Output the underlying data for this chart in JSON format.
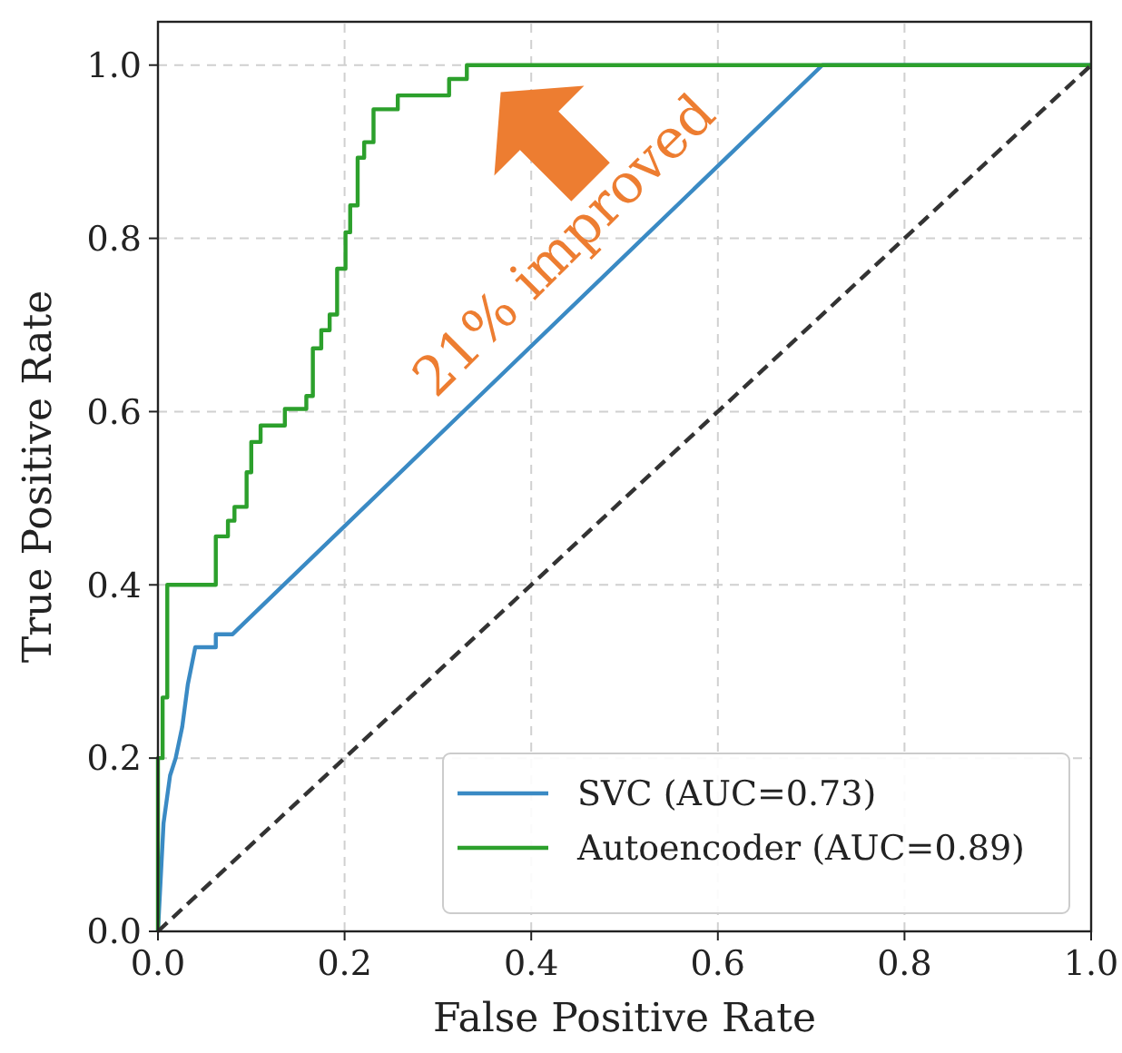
{
  "chart_data": {
    "type": "line",
    "xlabel": "False Positive Rate",
    "ylabel": "True Positive Rate",
    "xlim": [
      0,
      1
    ],
    "ylim": [
      0,
      1.05
    ],
    "xticks": [
      {
        "value": 0,
        "label": "0.0"
      },
      {
        "value": 0.2,
        "label": "0.2"
      },
      {
        "value": 0.4,
        "label": "0.4"
      },
      {
        "value": 0.6,
        "label": "0.6"
      },
      {
        "value": 0.8,
        "label": "0.8"
      },
      {
        "value": 1,
        "label": "1.0"
      }
    ],
    "yticks": [
      {
        "value": 0,
        "label": "0.0"
      },
      {
        "value": 0.2,
        "label": "0.2"
      },
      {
        "value": 0.4,
        "label": "0.4"
      },
      {
        "value": 0.6,
        "label": "0.6"
      },
      {
        "value": 0.8,
        "label": "0.8"
      },
      {
        "value": 1,
        "label": "1.0"
      }
    ],
    "grid": true,
    "legend": "bottom right",
    "marker": "none",
    "series": [
      {
        "name": "SVC (AUC=0.73)",
        "color": "#3a8ac4",
        "x": [
          0,
          0.006,
          0.013,
          0.019,
          0.026,
          0.032,
          0.04,
          0.062,
          0.062,
          0.08,
          0.712,
          1
        ],
        "values": [
          0,
          0.125,
          0.18,
          0.2,
          0.236,
          0.285,
          0.328,
          0.328,
          0.343,
          0.343,
          1,
          1
        ]
      },
      {
        "name": "Autoencoder (AUC=0.89)",
        "color": "#2ca02c",
        "x": [
          0,
          0,
          0.005,
          0.005,
          0.01,
          0.01,
          0.062,
          0.062,
          0.075,
          0.075,
          0.082,
          0.082,
          0.095,
          0.095,
          0.1,
          0.1,
          0.11,
          0.11,
          0.136,
          0.136,
          0.159,
          0.159,
          0.166,
          0.166,
          0.175,
          0.175,
          0.184,
          0.184,
          0.192,
          0.192,
          0.201,
          0.201,
          0.206,
          0.206,
          0.214,
          0.214,
          0.221,
          0.221,
          0.231,
          0.231,
          0.257,
          0.257,
          0.312,
          0.312,
          0.331,
          0.331,
          1
        ],
        "values": [
          0,
          0.2,
          0.2,
          0.27,
          0.27,
          0.4,
          0.4,
          0.456,
          0.456,
          0.474,
          0.474,
          0.49,
          0.49,
          0.53,
          0.53,
          0.565,
          0.565,
          0.584,
          0.584,
          0.603,
          0.603,
          0.618,
          0.618,
          0.673,
          0.673,
          0.694,
          0.694,
          0.712,
          0.712,
          0.765,
          0.765,
          0.807,
          0.807,
          0.838,
          0.838,
          0.893,
          0.893,
          0.911,
          0.911,
          0.949,
          0.949,
          0.965,
          0.965,
          0.984,
          0.984,
          1,
          1
        ]
      },
      {
        "color": "#333333",
        "line_style": "dashed",
        "x": [
          0,
          1
        ],
        "values": [
          0,
          1
        ]
      }
    ],
    "annotations": [
      "21% improved"
    ]
  }
}
